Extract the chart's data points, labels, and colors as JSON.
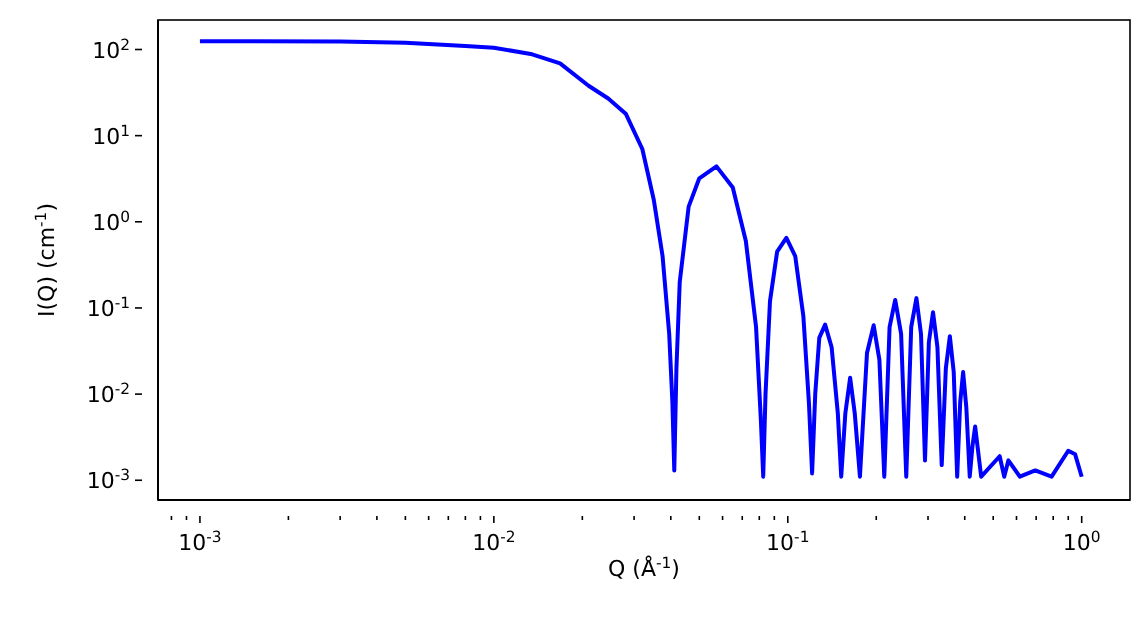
{
  "chart_data": {
    "type": "line",
    "xlabel": "Q (Å$^{-1}$)",
    "ylabel": "I(Q) (cm$^{-1}$)",
    "log": "xy",
    "marker": "none",
    "line_style": "solid",
    "xlim": [
      0.00072,
      1.46
    ],
    "ylim": [
      0.00059,
      220
    ],
    "xticks": [
      {
        "value": 0.0008,
        "label": null
      },
      {
        "value": 0.0009,
        "label": null
      },
      {
        "value": 0.001,
        "label": "10$^{-3}$"
      },
      {
        "value": 0.002,
        "label": null
      },
      {
        "value": 0.003,
        "label": null
      },
      {
        "value": 0.004,
        "label": null
      },
      {
        "value": 0.005,
        "label": null
      },
      {
        "value": 0.006,
        "label": null
      },
      {
        "value": 0.007,
        "label": null
      },
      {
        "value": 0.008,
        "label": null
      },
      {
        "value": 0.009,
        "label": null
      },
      {
        "value": 0.01,
        "label": "10$^{-2}$"
      },
      {
        "value": 0.02,
        "label": null
      },
      {
        "value": 0.03,
        "label": null
      },
      {
        "value": 0.04,
        "label": null
      },
      {
        "value": 0.05,
        "label": null
      },
      {
        "value": 0.06,
        "label": null
      },
      {
        "value": 0.07,
        "label": null
      },
      {
        "value": 0.08,
        "label": null
      },
      {
        "value": 0.09,
        "label": null
      },
      {
        "value": 0.1,
        "label": "10$^{-1}$"
      },
      {
        "value": 0.2,
        "label": null
      },
      {
        "value": 0.3,
        "label": null
      },
      {
        "value": 0.4,
        "label": null
      },
      {
        "value": 0.5,
        "label": null
      },
      {
        "value": 0.6,
        "label": null
      },
      {
        "value": 0.7,
        "label": null
      },
      {
        "value": 0.8,
        "label": null
      },
      {
        "value": 0.9,
        "label": null
      },
      {
        "value": 1,
        "label": "10$^{0}$"
      }
    ],
    "yticks": [
      {
        "value": 0.001,
        "label": "10$^{-3}$"
      },
      {
        "value": 0.01,
        "label": "10$^{-2}$"
      },
      {
        "value": 0.1,
        "label": "10$^{-1}$"
      },
      {
        "value": 1,
        "label": "10$^{0}$"
      },
      {
        "value": 10,
        "label": "10$^{1}$"
      },
      {
        "value": 100,
        "label": "10$^{2}$"
      }
    ],
    "series": [
      {
        "color": "#0000ff",
        "x": [
          0.001,
          0.003,
          0.005,
          0.008,
          0.01,
          0.0135,
          0.0168,
          0.021,
          0.0245,
          0.0281,
          0.032,
          0.035,
          0.0375,
          0.0395,
          0.0405,
          0.0411,
          0.0418,
          0.0429,
          0.046,
          0.05,
          0.0572,
          0.065,
          0.072,
          0.078,
          0.081,
          0.0825,
          0.084,
          0.087,
          0.092,
          0.0989,
          0.106,
          0.113,
          0.118,
          0.121,
          0.124,
          0.128,
          0.134,
          0.141,
          0.148,
          0.152,
          0.157,
          0.163,
          0.169,
          0.176,
          0.186,
          0.196,
          0.205,
          0.213,
          0.222,
          0.232,
          0.243,
          0.253,
          0.263,
          0.274,
          0.284,
          0.293,
          0.302,
          0.312,
          0.323,
          0.334,
          0.345,
          0.356,
          0.367,
          0.377,
          0.386,
          0.395,
          0.405,
          0.416,
          0.425,
          0.434,
          0.444,
          0.455,
          0.526,
          0.545,
          0.563,
          0.616,
          0.695,
          0.79,
          0.9,
          0.95,
          1.0
        ],
        "values": [
          125,
          124,
          120,
          110,
          105,
          88,
          69,
          38,
          27,
          18,
          7,
          1.8,
          0.4,
          0.05,
          0.008,
          0.0013,
          0.02,
          0.2,
          1.5,
          3.2,
          4.4,
          2.5,
          0.6,
          0.06,
          0.005,
          0.0011,
          0.01,
          0.12,
          0.45,
          0.65,
          0.4,
          0.08,
          0.008,
          0.0012,
          0.01,
          0.045,
          0.064,
          0.035,
          0.006,
          0.0011,
          0.006,
          0.0155,
          0.006,
          0.0011,
          0.03,
          0.063,
          0.025,
          0.0011,
          0.06,
          0.124,
          0.05,
          0.0011,
          0.06,
          0.13,
          0.05,
          0.0017,
          0.04,
          0.089,
          0.035,
          0.0015,
          0.02,
          0.047,
          0.018,
          0.0011,
          0.008,
          0.018,
          0.007,
          0.0011,
          0.0025,
          0.0042,
          0.0022,
          0.0011,
          0.0019,
          0.0011,
          0.0017,
          0.0011,
          0.0013,
          0.0011,
          0.0022,
          0.002,
          0.0011
        ]
      }
    ]
  }
}
